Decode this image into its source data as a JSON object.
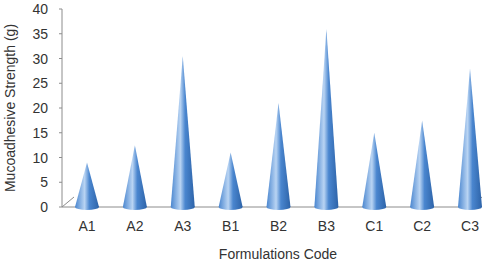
{
  "chart_data": {
    "type": "bar",
    "x_label": "Formulations Code",
    "y_label": "Mucoadhesive Strength (g)",
    "categories": [
      "A1",
      "A2",
      "A3",
      "B1",
      "B2",
      "B3",
      "C1",
      "C2",
      "C3"
    ],
    "values": [
      9,
      12.5,
      30.5,
      11,
      21,
      36,
      15,
      17.5,
      28
    ],
    "color": "#4a86cf",
    "ylim": [
      0,
      40
    ],
    "yticks": [
      0,
      5,
      10,
      15,
      20,
      25,
      30,
      35,
      40
    ],
    "grid": false
  }
}
